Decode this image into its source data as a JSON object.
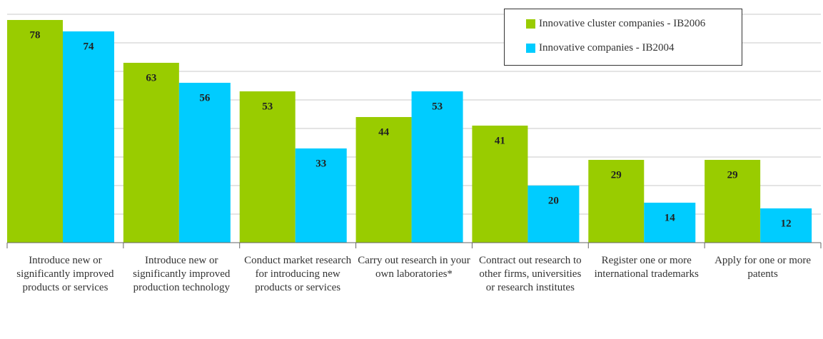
{
  "chart_data": {
    "type": "bar",
    "categories": [
      "Introduce new or significantly improved products or services",
      "Introduce new or significantly improved production technology",
      "Conduct market research for introducing new products or services",
      "Carry out research in your own laboratories*",
      "Contract out research to other firms, universities or research institutes",
      "Register one or more international trademarks",
      "Apply for one or more patents"
    ],
    "series": [
      {
        "name": "Innovative cluster companies - IB2006",
        "color": "#99cc00",
        "values": [
          78,
          63,
          53,
          44,
          41,
          29,
          29
        ]
      },
      {
        "name": "Innovative companies - IB2004",
        "color": "#00ccff",
        "values": [
          74,
          56,
          33,
          53,
          20,
          14,
          12
        ]
      }
    ],
    "ylim": [
      0,
      80
    ],
    "yticks": [
      0,
      10,
      20,
      30,
      40,
      50,
      60,
      70,
      80
    ],
    "grid": true
  }
}
